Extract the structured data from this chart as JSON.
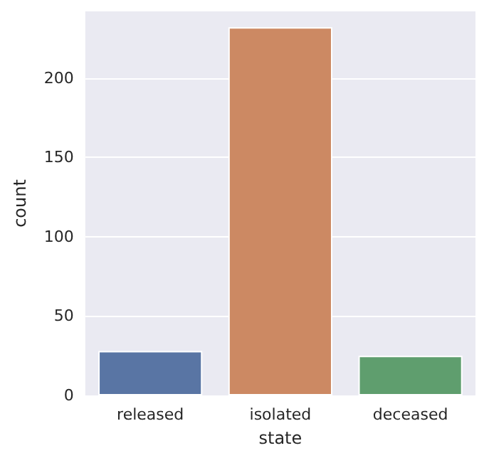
{
  "chart_data": {
    "type": "bar",
    "xlabel": "state",
    "ylabel": "count",
    "categories": [
      "released",
      "isolated",
      "deceased"
    ],
    "values": [
      28,
      232,
      25
    ],
    "colors": [
      "#5975a4",
      "#cc8963",
      "#5f9e6e"
    ],
    "ylim": [
      0,
      242
    ],
    "yticks": [
      0,
      50,
      100,
      150,
      200
    ],
    "grid": "y"
  }
}
